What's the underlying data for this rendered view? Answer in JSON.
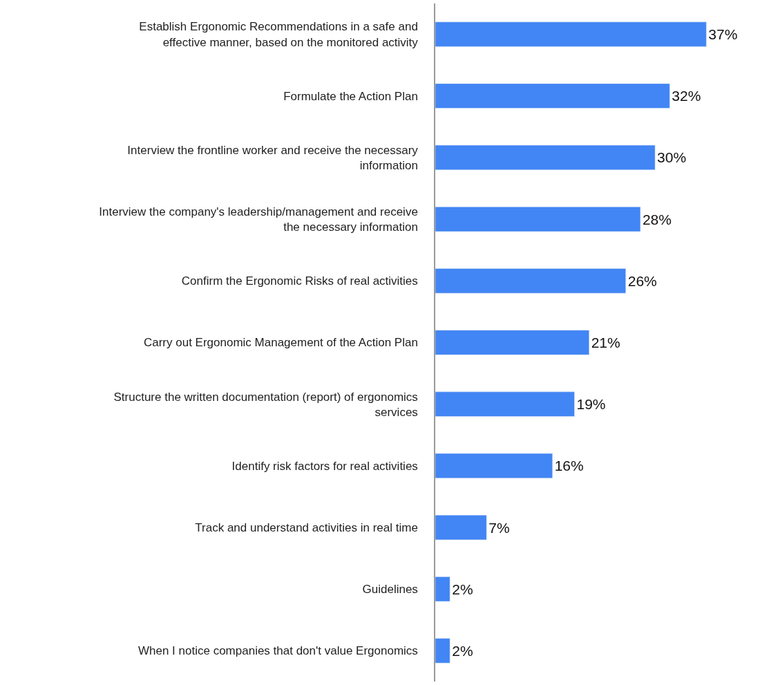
{
  "chart_data": {
    "type": "bar",
    "orientation": "horizontal",
    "categories": [
      "Establish Ergonomic Recommendations in a safe and effective manner, based on the monitored activity",
      "Formulate the Action Plan",
      "Interview the frontline worker and receive the necessary information",
      "Interview the company's leadership/management and receive the necessary information",
      "Confirm the Ergonomic Risks of real activities",
      "Carry out Ergonomic Management of the Action Plan",
      "Structure the written documentation (report) of ergonomics services",
      "Identify risk factors for real activities",
      "Track and understand activities in real time",
      "Guidelines",
      "When I notice companies that don't value Ergonomics"
    ],
    "values": [
      37,
      32,
      30,
      28,
      26,
      21,
      19,
      16,
      7,
      2,
      2
    ],
    "value_labels": [
      "37%",
      "32%",
      "30%",
      "28%",
      "26%",
      "21%",
      "19%",
      "16%",
      "7%",
      "2%",
      "2%"
    ],
    "color": "#4285f4"
  }
}
